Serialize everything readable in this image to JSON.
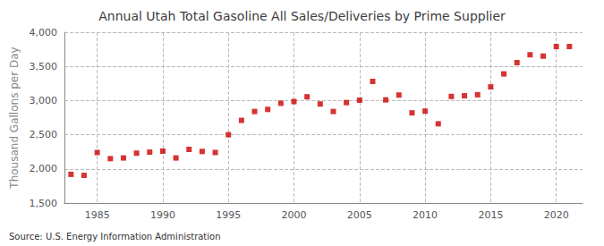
{
  "chart_data": {
    "type": "scatter",
    "title": "Annual Utah Total Gasoline All Sales/Deliveries by Prime Supplier",
    "ylabel": "Thousand Gallons per Day",
    "source": "Source: U.S. Energy Information Administration",
    "color": "#cc0000",
    "marker": "square",
    "x": [
      1983,
      1984,
      1985,
      1986,
      1987,
      1988,
      1989,
      1990,
      1991,
      1992,
      1993,
      1994,
      1995,
      1996,
      1997,
      1998,
      1999,
      2000,
      2001,
      2002,
      2003,
      2004,
      2005,
      2006,
      2007,
      2008,
      2009,
      2010,
      2011,
      2012,
      2013,
      2014,
      2015,
      2016,
      2017,
      2018,
      2019,
      2020,
      2021
    ],
    "values": [
      1920,
      1905,
      2240,
      2150,
      2160,
      2230,
      2245,
      2260,
      2160,
      2285,
      2255,
      2240,
      2500,
      2710,
      2840,
      2870,
      2960,
      2985,
      3055,
      2950,
      2840,
      2970,
      3005,
      3280,
      3010,
      3080,
      2820,
      2845,
      2660,
      3060,
      3070,
      3085,
      3200,
      3390,
      3555,
      3670,
      3650,
      3790,
      3790
    ],
    "xlim": [
      1982.5,
      2022
    ],
    "xticks": [
      1985,
      1990,
      1995,
      2000,
      2005,
      2010,
      2015,
      2020
    ],
    "ylim": [
      1500,
      4000
    ],
    "yticks": [
      {
        "value": 1500,
        "label": "1,500"
      },
      {
        "value": 2000,
        "label": "2,000"
      },
      {
        "value": 2500,
        "label": "2,500"
      },
      {
        "value": 3000,
        "label": "3,000"
      },
      {
        "value": 3500,
        "label": "3,500"
      },
      {
        "value": 4000,
        "label": "4,000"
      }
    ],
    "grid": true
  }
}
